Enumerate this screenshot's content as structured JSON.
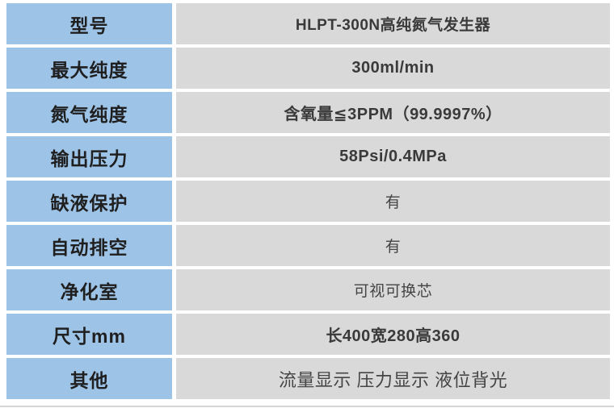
{
  "colors": {
    "label_bg": "#9DC3E6",
    "value_bg": "#D9D9D9",
    "page_bg": "#FFFFFF",
    "divider": "#D4D4D4"
  },
  "table": {
    "rows": [
      {
        "label": "型号",
        "value": "HLPT-300N高纯氮气发生器"
      },
      {
        "label": "最大纯度",
        "value": "300ml/min"
      },
      {
        "label": "氮气纯度",
        "value": "含氧量≦3PPM（99.9997%）"
      },
      {
        "label": "输出压力",
        "value": "58Psi/0.4MPa"
      },
      {
        "label": "缺液保护",
        "value": "有"
      },
      {
        "label": "自动排空",
        "value": "有"
      },
      {
        "label": "净化室",
        "value": "可视可换芯"
      },
      {
        "label": "尺寸mm",
        "value": "长400宽280高360"
      },
      {
        "label": "其他",
        "value": "流量显示 压力显示 液位背光"
      }
    ]
  }
}
